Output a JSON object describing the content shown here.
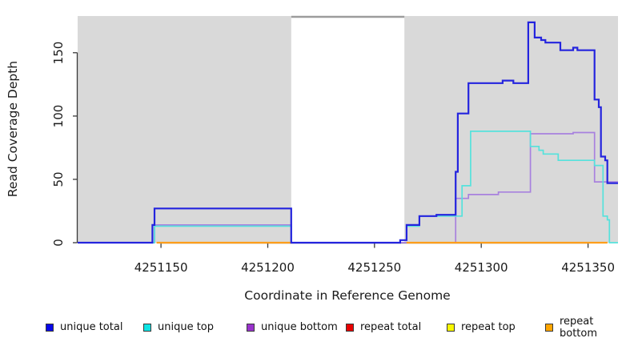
{
  "axes": {
    "y": {
      "label": "Read Coverage Depth",
      "tick_labels": [
        "0",
        "50",
        "100",
        "150"
      ],
      "tick_values": [
        0,
        50,
        100,
        150
      ]
    },
    "x": {
      "label": "Coordinate in Reference Genome",
      "tick_labels": [
        "4251150",
        "4251200",
        "4251250",
        "4251300",
        "4251350"
      ],
      "tick_values": [
        4251150,
        4251200,
        4251250,
        4251300,
        4251350
      ]
    }
  },
  "legend": {
    "items": [
      {
        "label": "unique total",
        "color": "#0808E8"
      },
      {
        "label": "unique top",
        "color": "#0DE3E3"
      },
      {
        "label": "unique bottom",
        "color": "#9932CC"
      },
      {
        "label": "repeat total",
        "color": "#E80000"
      },
      {
        "label": "repeat top",
        "color": "#F7F700"
      },
      {
        "label": "repeat bottom",
        "color": "#FFA500"
      }
    ]
  },
  "colors": {
    "panel_shade": "#D9D9D9",
    "gap_border": "#9C9C9C",
    "axis": "#3A3A3A",
    "text": "#1A1A1A"
  },
  "chart_data": {
    "type": "line",
    "subtype": "step-after read coverage profile",
    "title": "",
    "xlabel": "Coordinate in Reference Genome",
    "ylabel": "Read Coverage Depth",
    "x_range": [
      4251111,
      4251364
    ],
    "y_range": [
      0,
      179
    ],
    "x_ticks": [
      4251150,
      4251200,
      4251250,
      4251300,
      4251350
    ],
    "y_ticks": [
      0,
      50,
      100,
      150
    ],
    "grid": false,
    "legend_position": "bottom",
    "shaded_regions": [
      {
        "x1": 4251111,
        "x2": 4251211,
        "color": "#D9D9D9"
      },
      {
        "x1": 4251264,
        "x2": 4251364,
        "color": "#D9D9D9"
      }
    ],
    "gap_region": {
      "x1": 4251211,
      "x2": 4251264,
      "fill": "#FFFFFF",
      "top_border": "#9C9C9C"
    },
    "series": [
      {
        "name": "unique total",
        "color": "#2424DE",
        "width": 2.2,
        "points": [
          [
            4251111,
            0
          ],
          [
            4251146,
            14
          ],
          [
            4251147,
            27
          ],
          [
            4251211,
            0
          ],
          [
            4251262,
            2
          ],
          [
            4251265,
            14
          ],
          [
            4251271,
            21
          ],
          [
            4251279,
            22
          ],
          [
            4251288,
            56
          ],
          [
            4251289,
            102
          ],
          [
            4251294,
            126
          ],
          [
            4251310,
            128
          ],
          [
            4251315,
            126
          ],
          [
            4251322,
            174
          ],
          [
            4251325,
            162
          ],
          [
            4251328,
            160
          ],
          [
            4251330,
            158
          ],
          [
            4251337,
            152
          ],
          [
            4251343,
            154
          ],
          [
            4251345,
            152
          ],
          [
            4251353,
            113
          ],
          [
            4251355,
            107
          ],
          [
            4251356,
            68
          ],
          [
            4251358,
            65
          ],
          [
            4251359,
            47
          ],
          [
            4251364,
            47
          ]
        ]
      },
      {
        "name": "unique top",
        "color": "#55E2DC",
        "width": 1.7,
        "points": [
          [
            4251111,
            0
          ],
          [
            4251147,
            13
          ],
          [
            4251211,
            0
          ],
          [
            4251262,
            2
          ],
          [
            4251265,
            13
          ],
          [
            4251271,
            21
          ],
          [
            4251291,
            45
          ],
          [
            4251295,
            88
          ],
          [
            4251323,
            76
          ],
          [
            4251327,
            73
          ],
          [
            4251329,
            70
          ],
          [
            4251336,
            65
          ],
          [
            4251353,
            61
          ],
          [
            4251357,
            21
          ],
          [
            4251359,
            18
          ],
          [
            4251360,
            0
          ],
          [
            4251364,
            0
          ]
        ]
      },
      {
        "name": "unique bottom",
        "color": "#A881DE",
        "width": 1.7,
        "points": [
          [
            4251111,
            0
          ],
          [
            4251147,
            14
          ],
          [
            4251211,
            0
          ],
          [
            4251288,
            35
          ],
          [
            4251294,
            38
          ],
          [
            4251308,
            40
          ],
          [
            4251323,
            86
          ],
          [
            4251343,
            87
          ],
          [
            4251353,
            48
          ],
          [
            4251364,
            48
          ]
        ]
      },
      {
        "name": "repeat total",
        "color": "#DD1111",
        "width": 1.5,
        "segments": [
          [
            4251148,
            4251211,
            0
          ],
          [
            4251265,
            4251359,
            0
          ]
        ]
      },
      {
        "name": "repeat top",
        "color": "#F0F000",
        "width": 1.5,
        "segments": [
          [
            4251148,
            4251211,
            0
          ],
          [
            4251265,
            4251359,
            0
          ]
        ]
      },
      {
        "name": "repeat bottom",
        "color": "#FF9E1B",
        "width": 2.2,
        "segments": [
          [
            4251148,
            4251211,
            0
          ],
          [
            4251265,
            4251359,
            0
          ]
        ]
      }
    ]
  }
}
